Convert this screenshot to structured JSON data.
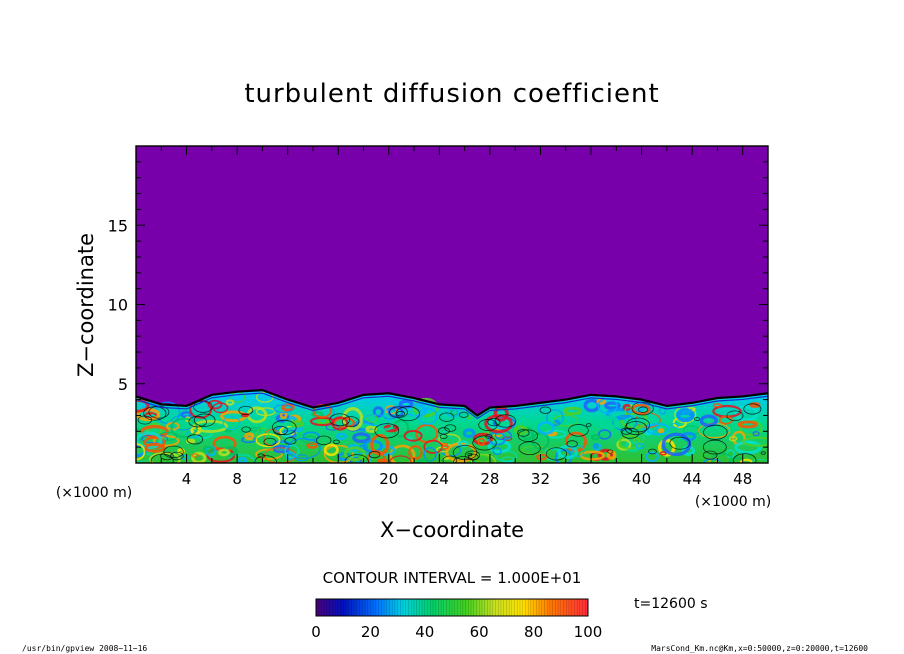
{
  "chart_data": {
    "type": "heatmap",
    "title": "turbulent diffusion coefficient",
    "xlabel": "X−coordinate",
    "ylabel": "Z−coordinate",
    "x_unit": "(×1000 m)",
    "y_unit": "(×1000 m)",
    "xlim": [
      0,
      50
    ],
    "ylim": [
      0,
      20
    ],
    "x_ticks": [
      "4",
      "8",
      "12",
      "16",
      "20",
      "24",
      "28",
      "32",
      "36",
      "40",
      "44",
      "48"
    ],
    "x_tick_values": [
      4,
      8,
      12,
      16,
      20,
      24,
      28,
      32,
      36,
      40,
      44,
      48
    ],
    "y_ticks": [
      "5",
      "10",
      "15"
    ],
    "y_tick_values": [
      5,
      10,
      15
    ],
    "background_color": "#7700aa",
    "turbulent_layer_top": [
      {
        "x": 0,
        "z": 4.2
      },
      {
        "x": 2,
        "z": 3.7
      },
      {
        "x": 4,
        "z": 3.6
      },
      {
        "x": 6,
        "z": 4.3
      },
      {
        "x": 8,
        "z": 4.5
      },
      {
        "x": 10,
        "z": 4.6
      },
      {
        "x": 12,
        "z": 4.0
      },
      {
        "x": 14,
        "z": 3.5
      },
      {
        "x": 16,
        "z": 3.8
      },
      {
        "x": 18,
        "z": 4.3
      },
      {
        "x": 20,
        "z": 4.4
      },
      {
        "x": 22,
        "z": 4.1
      },
      {
        "x": 24,
        "z": 3.7
      },
      {
        "x": 26,
        "z": 3.6
      },
      {
        "x": 27,
        "z": 3.0
      },
      {
        "x": 28,
        "z": 3.5
      },
      {
        "x": 30,
        "z": 3.6
      },
      {
        "x": 32,
        "z": 3.8
      },
      {
        "x": 34,
        "z": 4.0
      },
      {
        "x": 36,
        "z": 4.3
      },
      {
        "x": 38,
        "z": 4.2
      },
      {
        "x": 40,
        "z": 4.0
      },
      {
        "x": 42,
        "z": 3.6
      },
      {
        "x": 44,
        "z": 3.8
      },
      {
        "x": 46,
        "z": 4.1
      },
      {
        "x": 48,
        "z": 4.2
      },
      {
        "x": 50,
        "z": 4.4
      }
    ],
    "contour_interval_label": "CONTOUR INTERVAL = 1.000E+01",
    "time_label": "t=12600 s",
    "colorbar": {
      "ticks": [
        "0",
        "20",
        "40",
        "60",
        "80",
        "100"
      ],
      "tick_values": [
        0,
        20,
        40,
        60,
        80,
        100
      ],
      "range": [
        0,
        100
      ]
    }
  },
  "footer": {
    "left": "/usr/bin/gpview  2008−11−16",
    "right": "MarsCond_Km.nc@Km,x=0:50000,z=0:20000,t=12600"
  }
}
